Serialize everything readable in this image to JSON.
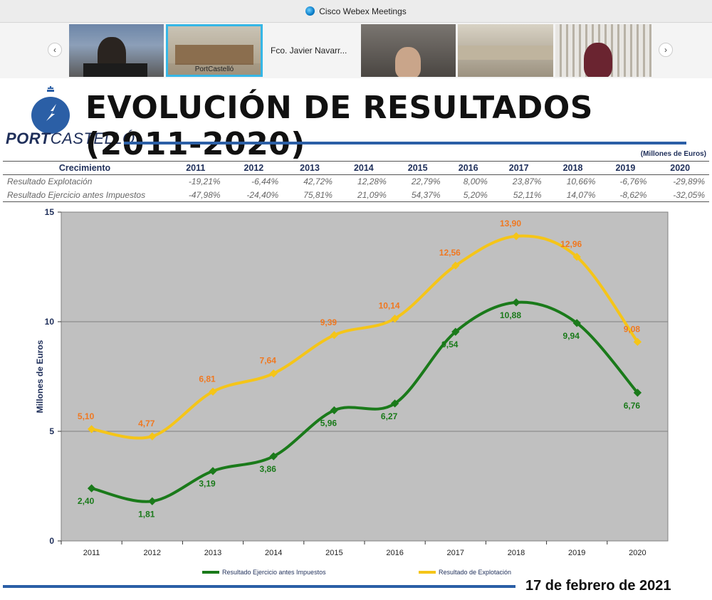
{
  "window": {
    "title": "Cisco Webex Meetings"
  },
  "participants": {
    "tiles": [
      {
        "label": ""
      },
      {
        "label": "PortCastelló"
      },
      {
        "label": "Fco. Javier Navarr..."
      },
      {
        "label": ""
      },
      {
        "label": ""
      },
      {
        "label": ""
      }
    ]
  },
  "slide": {
    "title": "EVOLUCIÓN DE RESULTADOS (2011-2020)",
    "brand_bold": "PORT",
    "brand_rest": "CASTELLÓ",
    "units_note": "(Millones de Euros)",
    "date": "17 de febrero de 2021",
    "accent_color": "#2b5fa6"
  },
  "growth_table": {
    "header_label": "Crecimiento",
    "years": [
      "2011",
      "2012",
      "2013",
      "2014",
      "2015",
      "2016",
      "2017",
      "2018",
      "2019",
      "2020"
    ],
    "rows": [
      {
        "label": "Resultado Explotación",
        "values": [
          "-19,21%",
          "-6,44%",
          "42,72%",
          "12,28%",
          "22,79%",
          "8,00%",
          "23,87%",
          "10,66%",
          "-6,76%",
          "-29,89%"
        ]
      },
      {
        "label": "Resultado Ejercicio antes Impuestos",
        "values": [
          "-47,98%",
          "-24,40%",
          "75,81%",
          "21,09%",
          "54,37%",
          "5,20%",
          "52,11%",
          "14,07%",
          "-8,62%",
          "-32,05%"
        ]
      }
    ]
  },
  "chart_data": {
    "type": "line",
    "ylabel": "Millones de Euros",
    "ylim": [
      0,
      15
    ],
    "yticks": [
      "0",
      "5",
      "10",
      "15"
    ],
    "categories": [
      "2011",
      "2012",
      "2013",
      "2014",
      "2015",
      "2016",
      "2017",
      "2018",
      "2019",
      "2020"
    ],
    "grid": true,
    "legend_position": "bottom",
    "series": [
      {
        "name": "Resultado de Explotación",
        "color": "#f5c518",
        "label_color": "#f07820",
        "values": [
          5.1,
          4.77,
          6.81,
          7.64,
          9.39,
          10.14,
          12.56,
          13.9,
          12.96,
          9.08
        ],
        "labels": [
          "5,10",
          "4,77",
          "6,81",
          "7,64",
          "9,39",
          "10,14",
          "12,56",
          "13,90",
          "12,96",
          "9,08"
        ]
      },
      {
        "name": "Resultado Ejercicio antes Impuestos",
        "color": "#1a7a1a",
        "label_color": "#1a7a1a",
        "values": [
          2.4,
          1.81,
          3.19,
          3.86,
          5.96,
          6.27,
          9.54,
          10.88,
          9.94,
          6.76
        ],
        "labels": [
          "2,40",
          "1,81",
          "3,19",
          "3,86",
          "5,96",
          "6,27",
          "9,54",
          "10,88",
          "9,94",
          "6,76"
        ]
      }
    ]
  }
}
